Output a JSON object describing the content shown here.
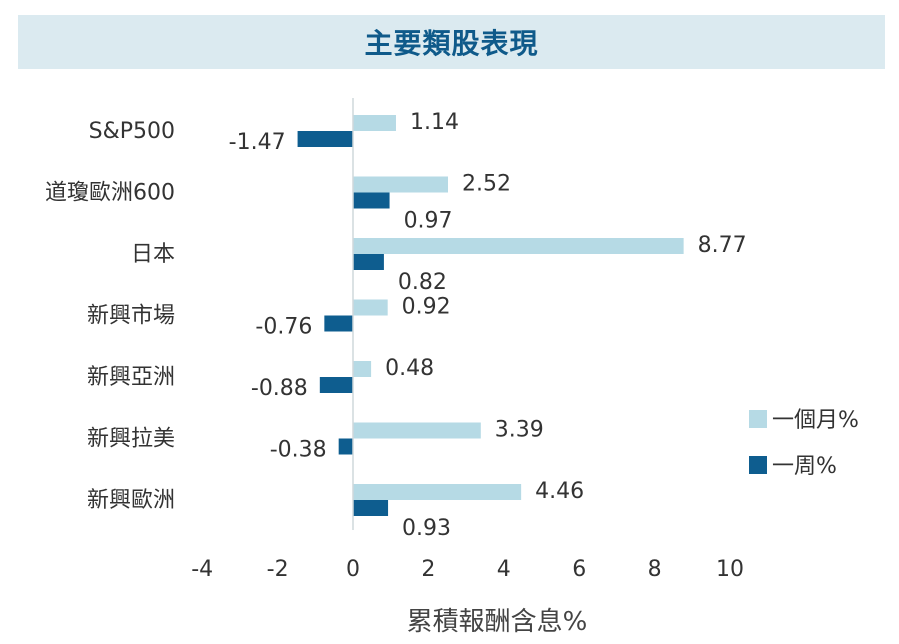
{
  "chart_data": {
    "type": "bar",
    "orientation": "horizontal",
    "title": "主要類股表現",
    "xlabel": "累積報酬含息%",
    "ylabel": "",
    "xlim": [
      -4,
      10
    ],
    "xticks": [
      "-4",
      "-2",
      "0",
      "2",
      "4",
      "6",
      "8",
      "10"
    ],
    "grid": false,
    "legend_position": "right",
    "categories": [
      "S&P500",
      "道瓊歐洲600",
      "日本",
      "新興市場",
      "新興亞洲",
      "新興拉美",
      "新興歐洲"
    ],
    "series": [
      {
        "name": "一個月%",
        "color": "#b6dae5",
        "values": [
          1.14,
          2.52,
          8.77,
          0.92,
          0.48,
          3.39,
          4.46
        ],
        "labels": [
          "1.14",
          "2.52",
          "8.77",
          "0.92",
          "0.48",
          "3.39",
          "4.46"
        ]
      },
      {
        "name": "一周%",
        "color": "#0e5d8f",
        "values": [
          -1.47,
          0.97,
          0.82,
          -0.76,
          -0.88,
          -0.38,
          0.93
        ],
        "labels": [
          "-1.47",
          "0.97",
          "0.82",
          "-0.76",
          "-0.88",
          "-0.38",
          "0.93"
        ]
      }
    ]
  }
}
